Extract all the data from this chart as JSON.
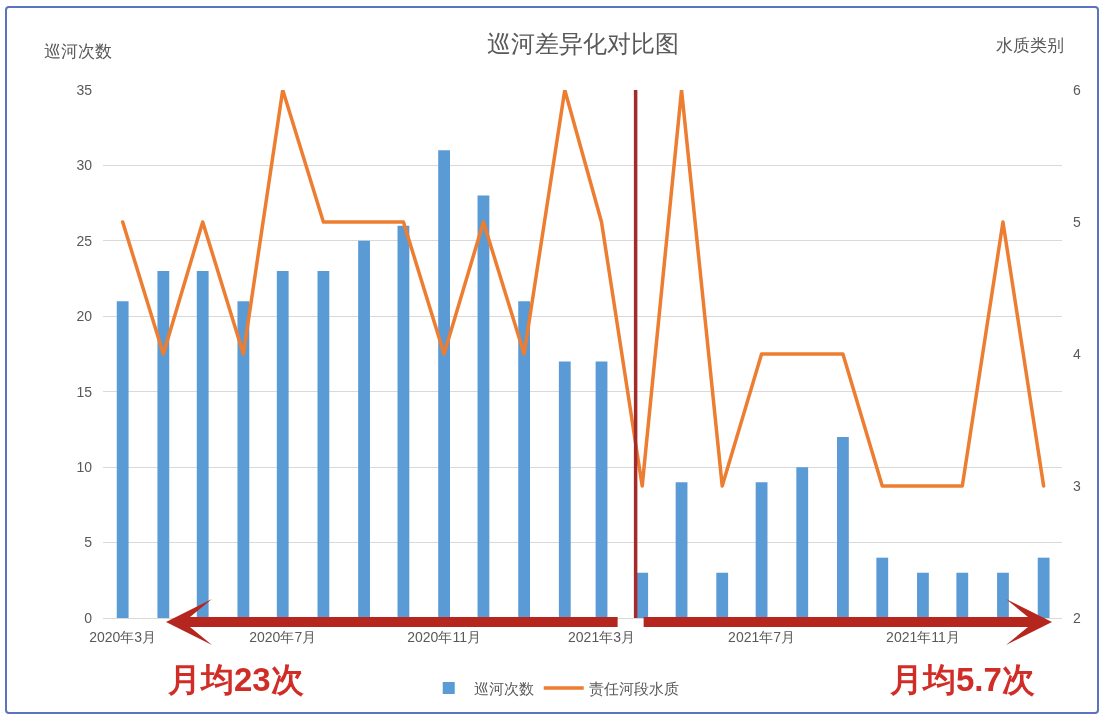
{
  "chart_data": {
    "type": "bar",
    "title": "巡河差异化对比图",
    "ylabel": "巡河次数",
    "y2label": "水质类别",
    "x": [
      "2020-03",
      "2020-04",
      "2020-05",
      "2020-06",
      "2020-07",
      "2020-08",
      "2020-09",
      "2020-10",
      "2020-11",
      "2020-12",
      "2021-01",
      "2021-02",
      "2021-03",
      "2021-04",
      "2021-05",
      "2021-06",
      "2021-07",
      "2021-08",
      "2021-09",
      "2021-10",
      "2021-11",
      "2021-12",
      "2022-01",
      "2022-02"
    ],
    "xlim": [
      "2020-02-15",
      "2022-02-15"
    ],
    "xticks": [
      {
        "value": "2020-03",
        "label": "2020年3月"
      },
      {
        "value": "2020-07",
        "label": "2020年7月"
      },
      {
        "value": "2020-11",
        "label": "2020年11月"
      },
      {
        "value": "2021-03",
        "label": "2021年3月"
      },
      {
        "value": "2021-07",
        "label": "2021年7月"
      },
      {
        "value": "2021-11",
        "label": "2021年11月"
      }
    ],
    "ylim": [
      0,
      35
    ],
    "yticks": [
      0,
      5,
      10,
      15,
      20,
      25,
      30,
      35
    ],
    "y2lim": [
      2,
      6
    ],
    "y2ticks": [
      2,
      3,
      4,
      5,
      6
    ],
    "series": [
      {
        "name": "巡河次数",
        "color": "#5b9bd5",
        "values": [
          21,
          23,
          23,
          21,
          23,
          23,
          25,
          26,
          31,
          28,
          21,
          17,
          17,
          3,
          9,
          3,
          9,
          10,
          12,
          4,
          3,
          3,
          3,
          4
        ]
      },
      {
        "name": "责任河段水质",
        "type": "line",
        "axis": "y2",
        "color": "#ed7d31",
        "values": [
          5,
          4,
          5,
          4,
          6,
          5,
          5,
          5,
          4,
          5,
          4,
          6,
          5,
          3,
          6,
          3,
          4,
          4,
          4,
          3,
          3,
          3,
          5,
          3
        ]
      }
    ],
    "ref_lines": [
      {
        "axis": "x",
        "value": "2021-03-27",
        "color": "#a52a2a"
      }
    ],
    "annotations": [
      "月均23次",
      "月均5.7次"
    ],
    "grid": "y",
    "legend": "bottom"
  }
}
